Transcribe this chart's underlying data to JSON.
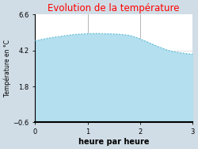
{
  "title": "Evolution de la température",
  "title_color": "#ff0000",
  "xlabel": "heure par heure",
  "ylabel": "Température en °C",
  "xlim": [
    0,
    3
  ],
  "ylim": [
    -0.6,
    6.6
  ],
  "xticks": [
    0,
    1,
    2,
    3
  ],
  "yticks": [
    -0.6,
    1.8,
    4.2,
    6.6
  ],
  "background_color": "#d0dde6",
  "plot_bg_color": "#ffffff",
  "fill_color": "#b3dfee",
  "line_color": "#5bbcd6",
  "x": [
    0.0,
    0.1,
    0.2,
    0.3,
    0.4,
    0.5,
    0.6,
    0.7,
    0.8,
    0.9,
    1.0,
    1.1,
    1.2,
    1.3,
    1.4,
    1.5,
    1.6,
    1.7,
    1.8,
    1.9,
    2.0,
    2.1,
    2.2,
    2.3,
    2.4,
    2.5,
    2.6,
    2.7,
    2.8,
    2.9,
    3.0
  ],
  "y": [
    4.85,
    4.92,
    4.99,
    5.05,
    5.1,
    5.15,
    5.2,
    5.25,
    5.28,
    5.3,
    5.32,
    5.33,
    5.33,
    5.32,
    5.31,
    5.3,
    5.28,
    5.25,
    5.2,
    5.1,
    4.97,
    4.82,
    4.67,
    4.52,
    4.38,
    4.25,
    4.15,
    4.08,
    4.03,
    3.98,
    3.95
  ]
}
